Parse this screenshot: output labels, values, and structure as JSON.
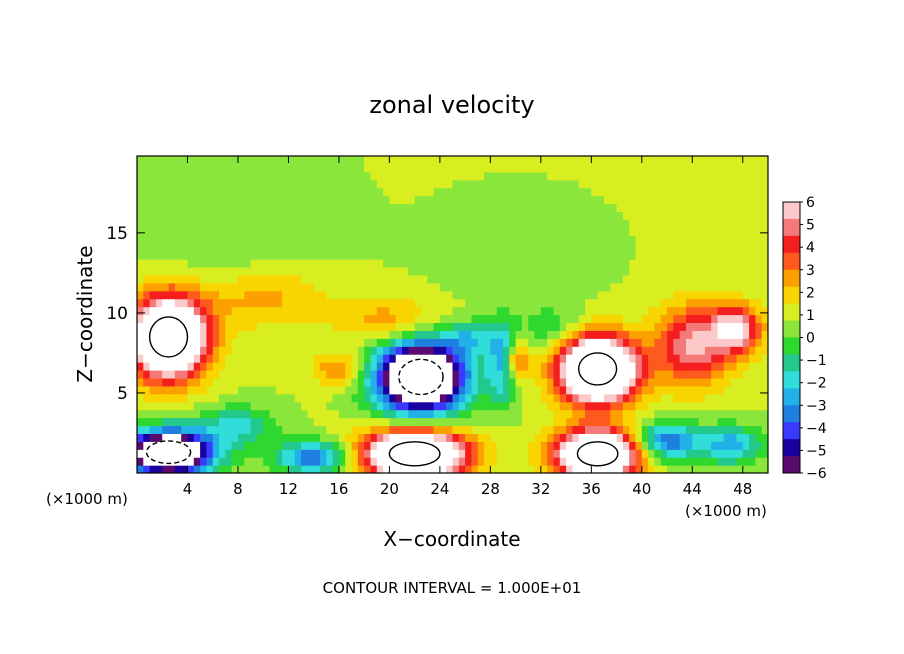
{
  "chart_data": {
    "type": "heatmap",
    "title": "zonal velocity",
    "xlabel": "X−coordinate",
    "ylabel": "Z−coordinate",
    "x_unit_left": "(×1000 m)",
    "x_unit_right": "(×1000 m)",
    "footer": "CONTOUR INTERVAL = 1.000E+01",
    "xlim": [
      0,
      50
    ],
    "ylim": [
      0,
      19.8
    ],
    "x_ticks": [
      4,
      8,
      12,
      16,
      20,
      24,
      28,
      32,
      36,
      40,
      44,
      48
    ],
    "y_ticks": [
      5,
      10,
      15
    ],
    "colorbar": {
      "ticks": [
        6,
        5,
        4,
        3,
        2,
        1,
        0,
        -1,
        -2,
        -3,
        -4,
        -5,
        -6
      ],
      "tick_labels": [
        "6",
        "5",
        "4",
        "3",
        "2",
        "1",
        "0",
        "−1",
        "−2",
        "−3",
        "−4",
        "−5",
        "−6"
      ],
      "colors": [
        "#5a0a6e",
        "#1a00a0",
        "#3a3aff",
        "#1f7fe0",
        "#22b0e8",
        "#30ddd8",
        "#22c88c",
        "#2fd82f",
        "#8ae63a",
        "#d8ee20",
        "#f8d400",
        "#fca000",
        "#ff5a1e",
        "#f51e1e",
        "#f47a7a",
        "#fcc8c8"
      ]
    },
    "blobs": [
      {
        "x": 2.5,
        "z": 8.5,
        "v": 11,
        "rx": 3.0,
        "rz": 2.5
      },
      {
        "x": 22.5,
        "z": 6.0,
        "v": -12,
        "rx": 3.5,
        "rz": 2.2
      },
      {
        "x": 36.5,
        "z": 6.5,
        "v": 12,
        "rx": 3.0,
        "rz": 2.0
      },
      {
        "x": 22.0,
        "z": 1.2,
        "v": 11,
        "rx": 4.0,
        "rz": 1.5
      },
      {
        "x": 36.5,
        "z": 1.2,
        "v": 11,
        "rx": 3.2,
        "rz": 1.5
      },
      {
        "x": 2.5,
        "z": 1.3,
        "v": -11,
        "rx": 3.5,
        "rz": 1.4
      },
      {
        "x": 44.0,
        "z": 8.0,
        "v": 4.5,
        "rx": 3.0,
        "rz": 2.5
      },
      {
        "x": 47.5,
        "z": 9.0,
        "v": 5.0,
        "rx": 2.0,
        "rz": 1.5
      },
      {
        "x": 29.0,
        "z": 7.0,
        "v": -3.5,
        "rx": 1.2,
        "rz": 2.5
      },
      {
        "x": 30.0,
        "z": 7.0,
        "v": 3.5,
        "rx": 1.0,
        "rz": 1.2
      },
      {
        "x": 16.0,
        "z": 6.5,
        "v": 2.5,
        "rx": 2.0,
        "rz": 1.0
      },
      {
        "x": 42.0,
        "z": 2.0,
        "v": -4.5,
        "rx": 2.5,
        "rz": 1.2
      },
      {
        "x": 47.0,
        "z": 1.8,
        "v": -3.5,
        "rx": 2.5,
        "rz": 1.2
      },
      {
        "x": 14.0,
        "z": 1.0,
        "v": -4.5,
        "rx": 3.0,
        "rz": 1.0
      },
      {
        "x": 8.0,
        "z": 3.0,
        "v": -2.5,
        "rx": 3.0,
        "rz": 1.2
      },
      {
        "x": 10.0,
        "z": 11.0,
        "v": 2.0,
        "rx": 5.0,
        "rz": 2.0
      },
      {
        "x": 20.0,
        "z": 9.5,
        "v": 2.0,
        "rx": 4.0,
        "rz": 1.5
      },
      {
        "x": 8.0,
        "z": 15.0,
        "v": -0.8,
        "rx": 7.0,
        "rz": 5.0
      },
      {
        "x": 30.0,
        "z": 14.0,
        "v": -0.6,
        "rx": 6.0,
        "rz": 3.0
      },
      {
        "x": 33.0,
        "z": 9.0,
        "v": -1.5,
        "rx": 2.5,
        "rz": 1.5
      },
      {
        "x": 26.5,
        "z": 8.5,
        "v": -2.5,
        "rx": 2.0,
        "rz": 1.0
      }
    ],
    "background_value": 0.8
  }
}
